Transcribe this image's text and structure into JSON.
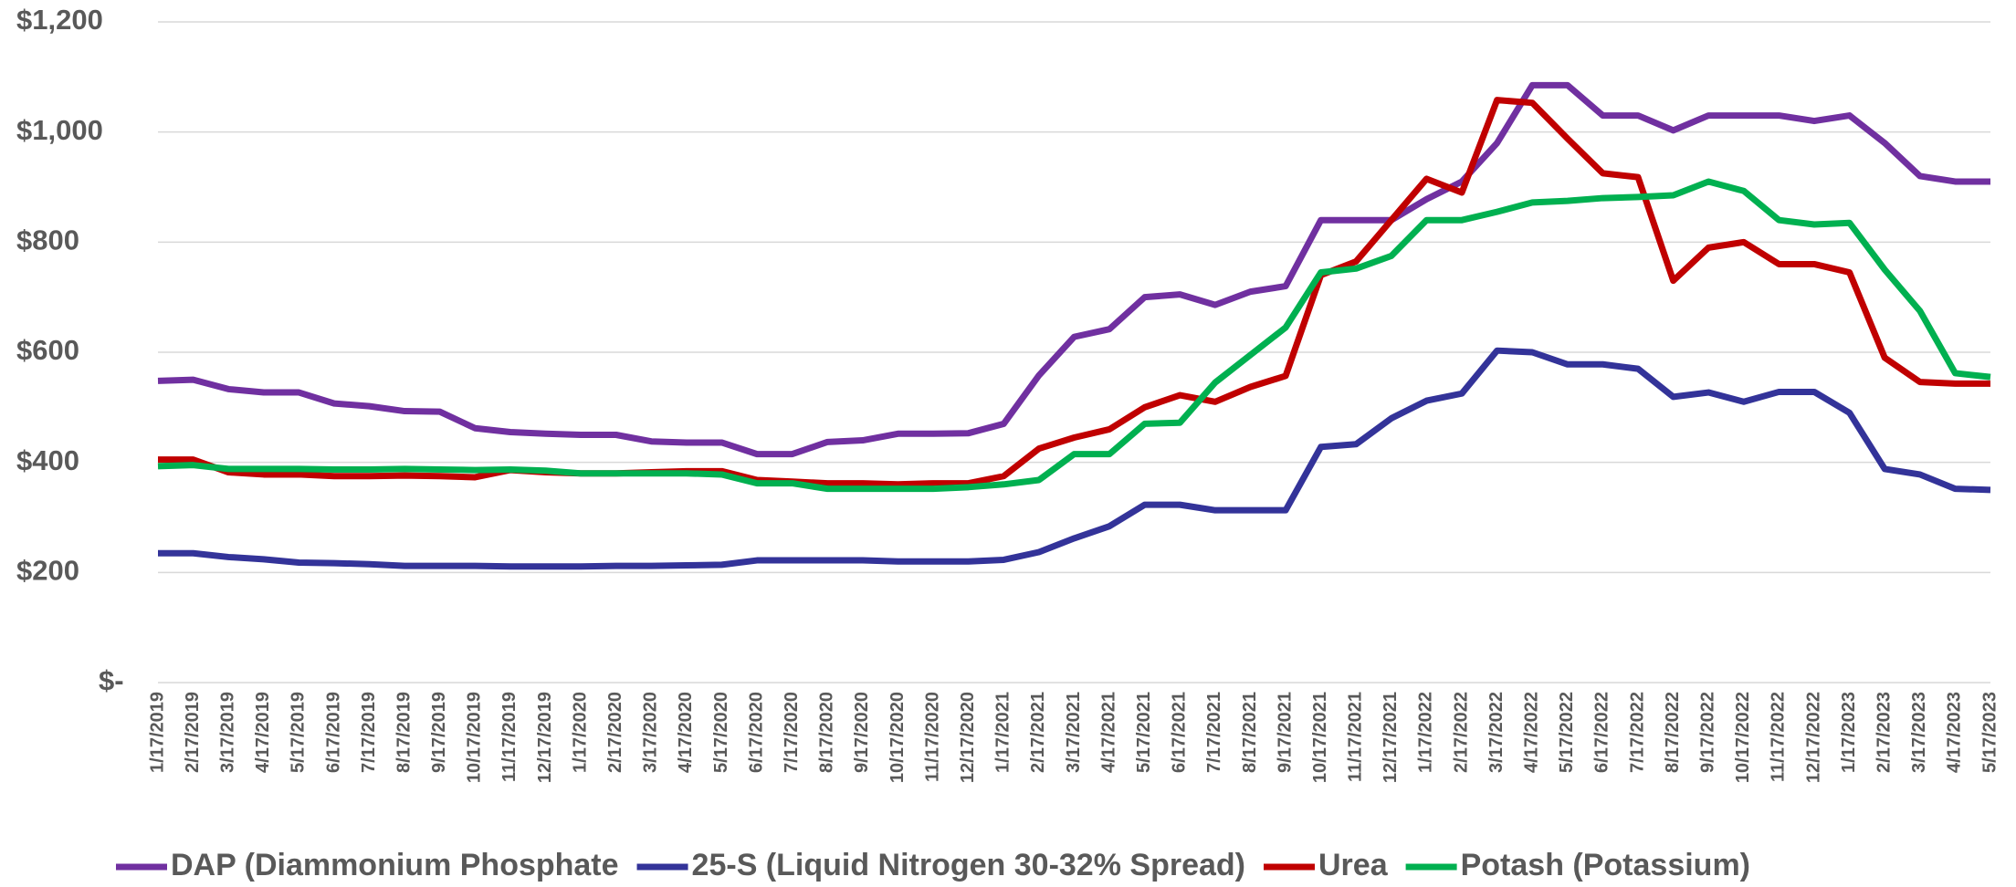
{
  "chart_data": {
    "type": "line",
    "categories": [
      "1/17/2019",
      "2/17/2019",
      "3/17/2019",
      "4/17/2019",
      "5/17/2019",
      "6/17/2019",
      "7/17/2019",
      "8/17/2019",
      "9/17/2019",
      "10/17/2019",
      "11/17/2019",
      "12/17/2019",
      "1/17/2020",
      "2/17/2020",
      "3/17/2020",
      "4/17/2020",
      "5/17/2020",
      "6/17/2020",
      "7/17/2020",
      "8/17/2020",
      "9/17/2020",
      "10/17/2020",
      "11/17/2020",
      "12/17/2020",
      "1/17/2021",
      "2/17/2021",
      "3/17/2021",
      "4/17/2021",
      "5/17/2021",
      "6/17/2021",
      "7/17/2021",
      "8/17/2021",
      "9/17/2021",
      "10/17/2021",
      "11/17/2021",
      "12/17/2021",
      "1/17/2022",
      "2/17/2022",
      "3/17/2022",
      "4/17/2022",
      "5/17/2022",
      "6/17/2022",
      "7/17/2022",
      "8/17/2022",
      "9/17/2022",
      "10/17/2022",
      "11/17/2022",
      "12/17/2022",
      "1/17/2023",
      "2/17/2023",
      "3/17/2023",
      "4/17/2023",
      "5/17/2023"
    ],
    "series": [
      {
        "name": "DAP (Diammonium Phosphate",
        "color": "#7030a0",
        "values": [
          548,
          550,
          533,
          527,
          527,
          507,
          502,
          493,
          492,
          462,
          455,
          452,
          450,
          450,
          438,
          436,
          436,
          415,
          415,
          437,
          440,
          452,
          452,
          453,
          470,
          558,
          628,
          642,
          700,
          705,
          686,
          710,
          720,
          840,
          840,
          840,
          878,
          910,
          980,
          1085,
          1085,
          1030,
          1030,
          1003,
          1030,
          1030,
          1030,
          1020,
          1030,
          980,
          920,
          910,
          910
        ]
      },
      {
        "name": "25-S (Liquid Nitrogen 30-32% Spread)",
        "color": "#333399",
        "values": [
          235,
          235,
          228,
          224,
          218,
          217,
          215,
          212,
          212,
          212,
          211,
          211,
          211,
          212,
          212,
          213,
          214,
          222,
          222,
          222,
          222,
          220,
          220,
          220,
          223,
          237,
          262,
          284,
          323,
          323,
          313,
          313,
          313,
          428,
          433,
          480,
          512,
          525,
          603,
          600,
          578,
          578,
          570,
          519,
          527,
          510,
          528,
          528,
          490,
          388,
          378,
          352,
          350
        ]
      },
      {
        "name": "Urea",
        "color": "#c00000",
        "values": [
          405,
          405,
          382,
          378,
          378,
          375,
          375,
          376,
          375,
          373,
          386,
          382,
          380,
          380,
          382,
          384,
          384,
          368,
          365,
          362,
          362,
          360,
          362,
          362,
          375,
          425,
          445,
          460,
          500,
          522,
          510,
          537,
          557,
          740,
          765,
          840,
          915,
          890,
          1058,
          1053,
          988,
          925,
          918,
          730,
          790,
          800,
          760,
          760,
          745,
          590,
          546,
          543,
          543
        ]
      },
      {
        "name": "Potash (Potassium)",
        "color": "#00b050",
        "values": [
          393,
          395,
          388,
          388,
          388,
          387,
          387,
          388,
          387,
          386,
          387,
          385,
          380,
          380,
          380,
          380,
          378,
          362,
          362,
          352,
          352,
          352,
          352,
          355,
          360,
          368,
          415,
          415,
          470,
          472,
          545,
          595,
          645,
          745,
          752,
          775,
          840,
          840,
          855,
          872,
          875,
          880,
          882,
          885,
          910,
          893,
          840,
          832,
          835,
          750,
          675,
          562,
          555
        ]
      }
    ],
    "ylim": [
      0,
      1200
    ],
    "yticks": [
      {
        "value": 0,
        "label": "$-"
      },
      {
        "value": 200,
        "label": "$200"
      },
      {
        "value": 400,
        "label": "$400"
      },
      {
        "value": 600,
        "label": "$600"
      },
      {
        "value": 800,
        "label": "$800"
      },
      {
        "value": 1000,
        "label": "$1,000"
      },
      {
        "value": 1200,
        "label": "$1,200"
      }
    ],
    "grid": true,
    "legend": "bottom"
  }
}
